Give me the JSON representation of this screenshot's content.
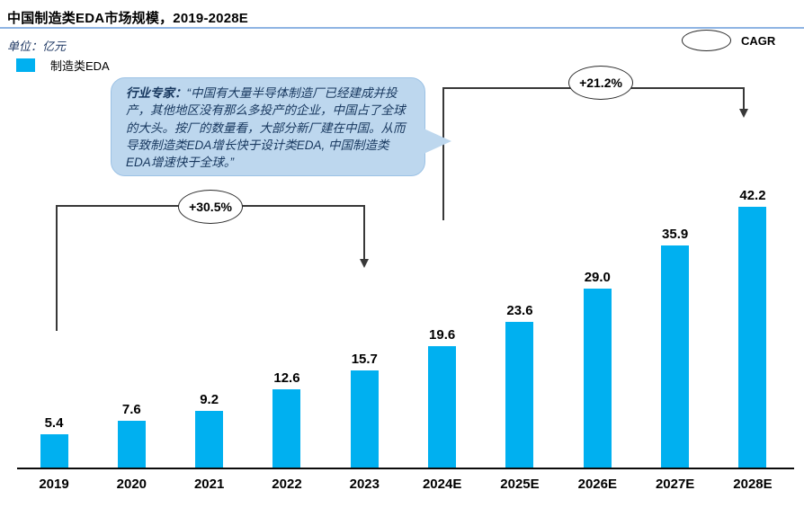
{
  "header": {
    "title": "中国制造类EDA市场规模，2019-2028E",
    "unit_label": "单位：亿元"
  },
  "legend": {
    "series_label": "制造类EDA",
    "series_color": "#00B0F0",
    "cagr_label": "CAGR"
  },
  "expert_note": {
    "speaker_label": "行业专家：",
    "quote": "“中国有大量半导体制造厂已经建成并投产，其他地区没有那么多投产的企业，中国占了全球的大头。按厂的数量看，大部分新厂建在中国。从而导致制造类EDA增长快于设计类EDA, 中国制造类EDA增速快于全球。”"
  },
  "annotations": {
    "cagr_2019_2023": "+30.5%",
    "cagr_2024e_2028e": "+21.2%"
  },
  "colors": {
    "bar": "#00B0F0",
    "title_underline": "#8FB4E3",
    "bubble_fill": "#BDD7EE",
    "bubble_border": "#9CC2E5",
    "bubble_text": "#17375E",
    "unit_text": "#1F3864"
  },
  "chart_data": {
    "type": "bar",
    "title": "中国制造类EDA市场规模，2019-2028E",
    "unit": "亿元",
    "series_name": "制造类EDA",
    "categories": [
      "2019",
      "2020",
      "2021",
      "2022",
      "2023",
      "2024E",
      "2025E",
      "2026E",
      "2027E",
      "2028E"
    ],
    "values": [
      5.4,
      7.6,
      9.2,
      12.6,
      15.7,
      19.6,
      23.6,
      29.0,
      35.9,
      42.2
    ],
    "value_labels": [
      "5.4",
      "7.6",
      "9.2",
      "12.6",
      "15.7",
      "19.6",
      "23.6",
      "29.0",
      "35.9",
      "42.2"
    ],
    "bar_color": "#00B0F0",
    "ylim": [
      0,
      45
    ],
    "grid": false,
    "legend_position": "top-left",
    "annotations": [
      {
        "label": "+30.5%",
        "from": "2019",
        "to": "2023"
      },
      {
        "label": "+21.2%",
        "from": "2024E",
        "to": "2028E"
      }
    ]
  }
}
